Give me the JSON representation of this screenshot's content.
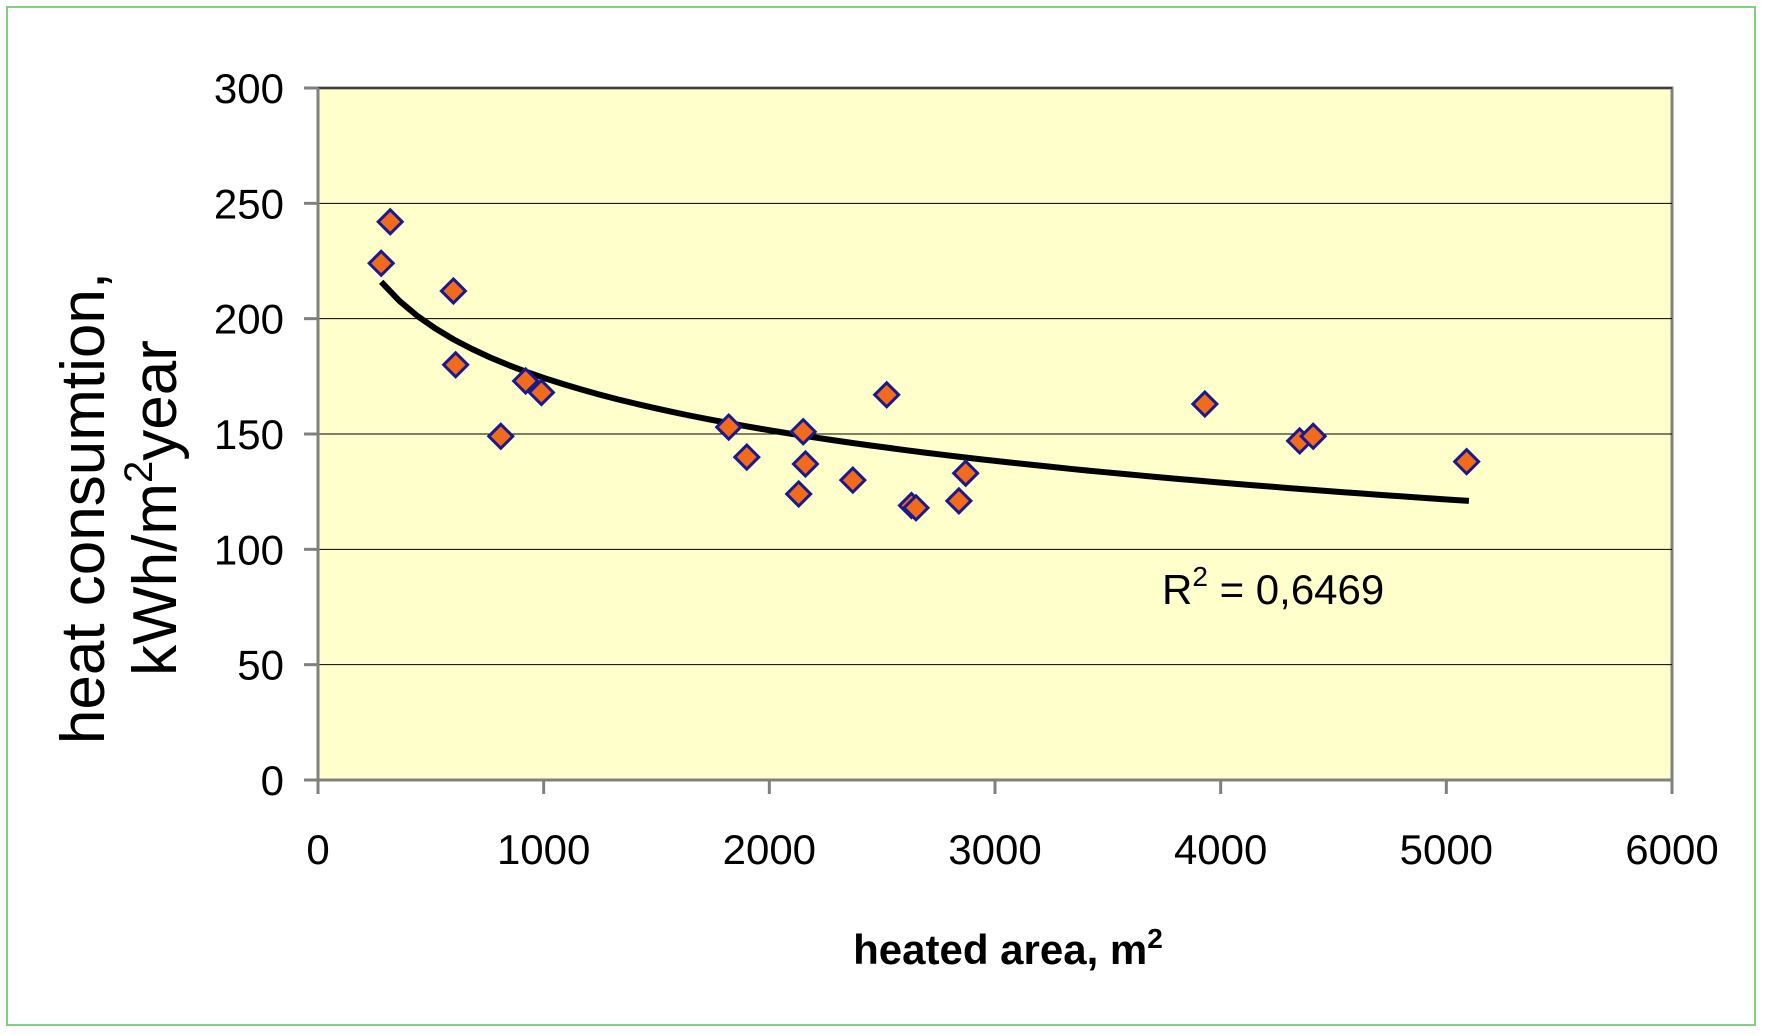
{
  "chart_data": {
    "type": "scatter",
    "xlabel": "heated area, m",
    "xlabel_sup": "2",
    "ylabel_line1": "heat consumtion,",
    "ylabel_line2_a": "kWh/m",
    "ylabel_line2_sup": "2",
    "ylabel_line2_b": "year",
    "xlim": [
      0,
      6000
    ],
    "ylim": [
      0,
      300
    ],
    "xticks": [
      0,
      1000,
      2000,
      3000,
      4000,
      5000,
      6000
    ],
    "yticks": [
      0,
      50,
      100,
      150,
      200,
      250,
      300
    ],
    "xtick_labels": [
      "0",
      "1000",
      "2000",
      "3000",
      "4000",
      "5000",
      "6000"
    ],
    "ytick_labels": [
      "0",
      "50",
      "100",
      "150",
      "200",
      "250",
      "300"
    ],
    "grid": "horizontal",
    "legend": "none",
    "points": [
      {
        "x": 280,
        "y": 224
      },
      {
        "x": 320,
        "y": 242
      },
      {
        "x": 600,
        "y": 212
      },
      {
        "x": 610,
        "y": 180
      },
      {
        "x": 810,
        "y": 149
      },
      {
        "x": 920,
        "y": 173
      },
      {
        "x": 990,
        "y": 168
      },
      {
        "x": 1820,
        "y": 153
      },
      {
        "x": 1900,
        "y": 140
      },
      {
        "x": 2130,
        "y": 124
      },
      {
        "x": 2150,
        "y": 151
      },
      {
        "x": 2160,
        "y": 137
      },
      {
        "x": 2370,
        "y": 130
      },
      {
        "x": 2520,
        "y": 167
      },
      {
        "x": 2630,
        "y": 119
      },
      {
        "x": 2650,
        "y": 118
      },
      {
        "x": 2840,
        "y": 121
      },
      {
        "x": 2870,
        "y": 133
      },
      {
        "x": 3930,
        "y": 163
      },
      {
        "x": 4350,
        "y": 147
      },
      {
        "x": 4410,
        "y": 149
      },
      {
        "x": 5090,
        "y": 138
      }
    ],
    "trendline": {
      "type": "logarithmic",
      "x_range": [
        280,
        5100
      ],
      "y_at_start": 216,
      "y_at_end": 121
    },
    "annotation_prefix": "R",
    "annotation_sup": "2",
    "annotation_value": " = 0,6469",
    "colors": {
      "plot_background": "#ffffcc",
      "marker_fill": "#f26b1d",
      "marker_edge": "#1a1a8c",
      "trendline": "#000000",
      "gridline": "#000000",
      "axis": "#808080",
      "frame_border": "#7fd07f"
    }
  }
}
